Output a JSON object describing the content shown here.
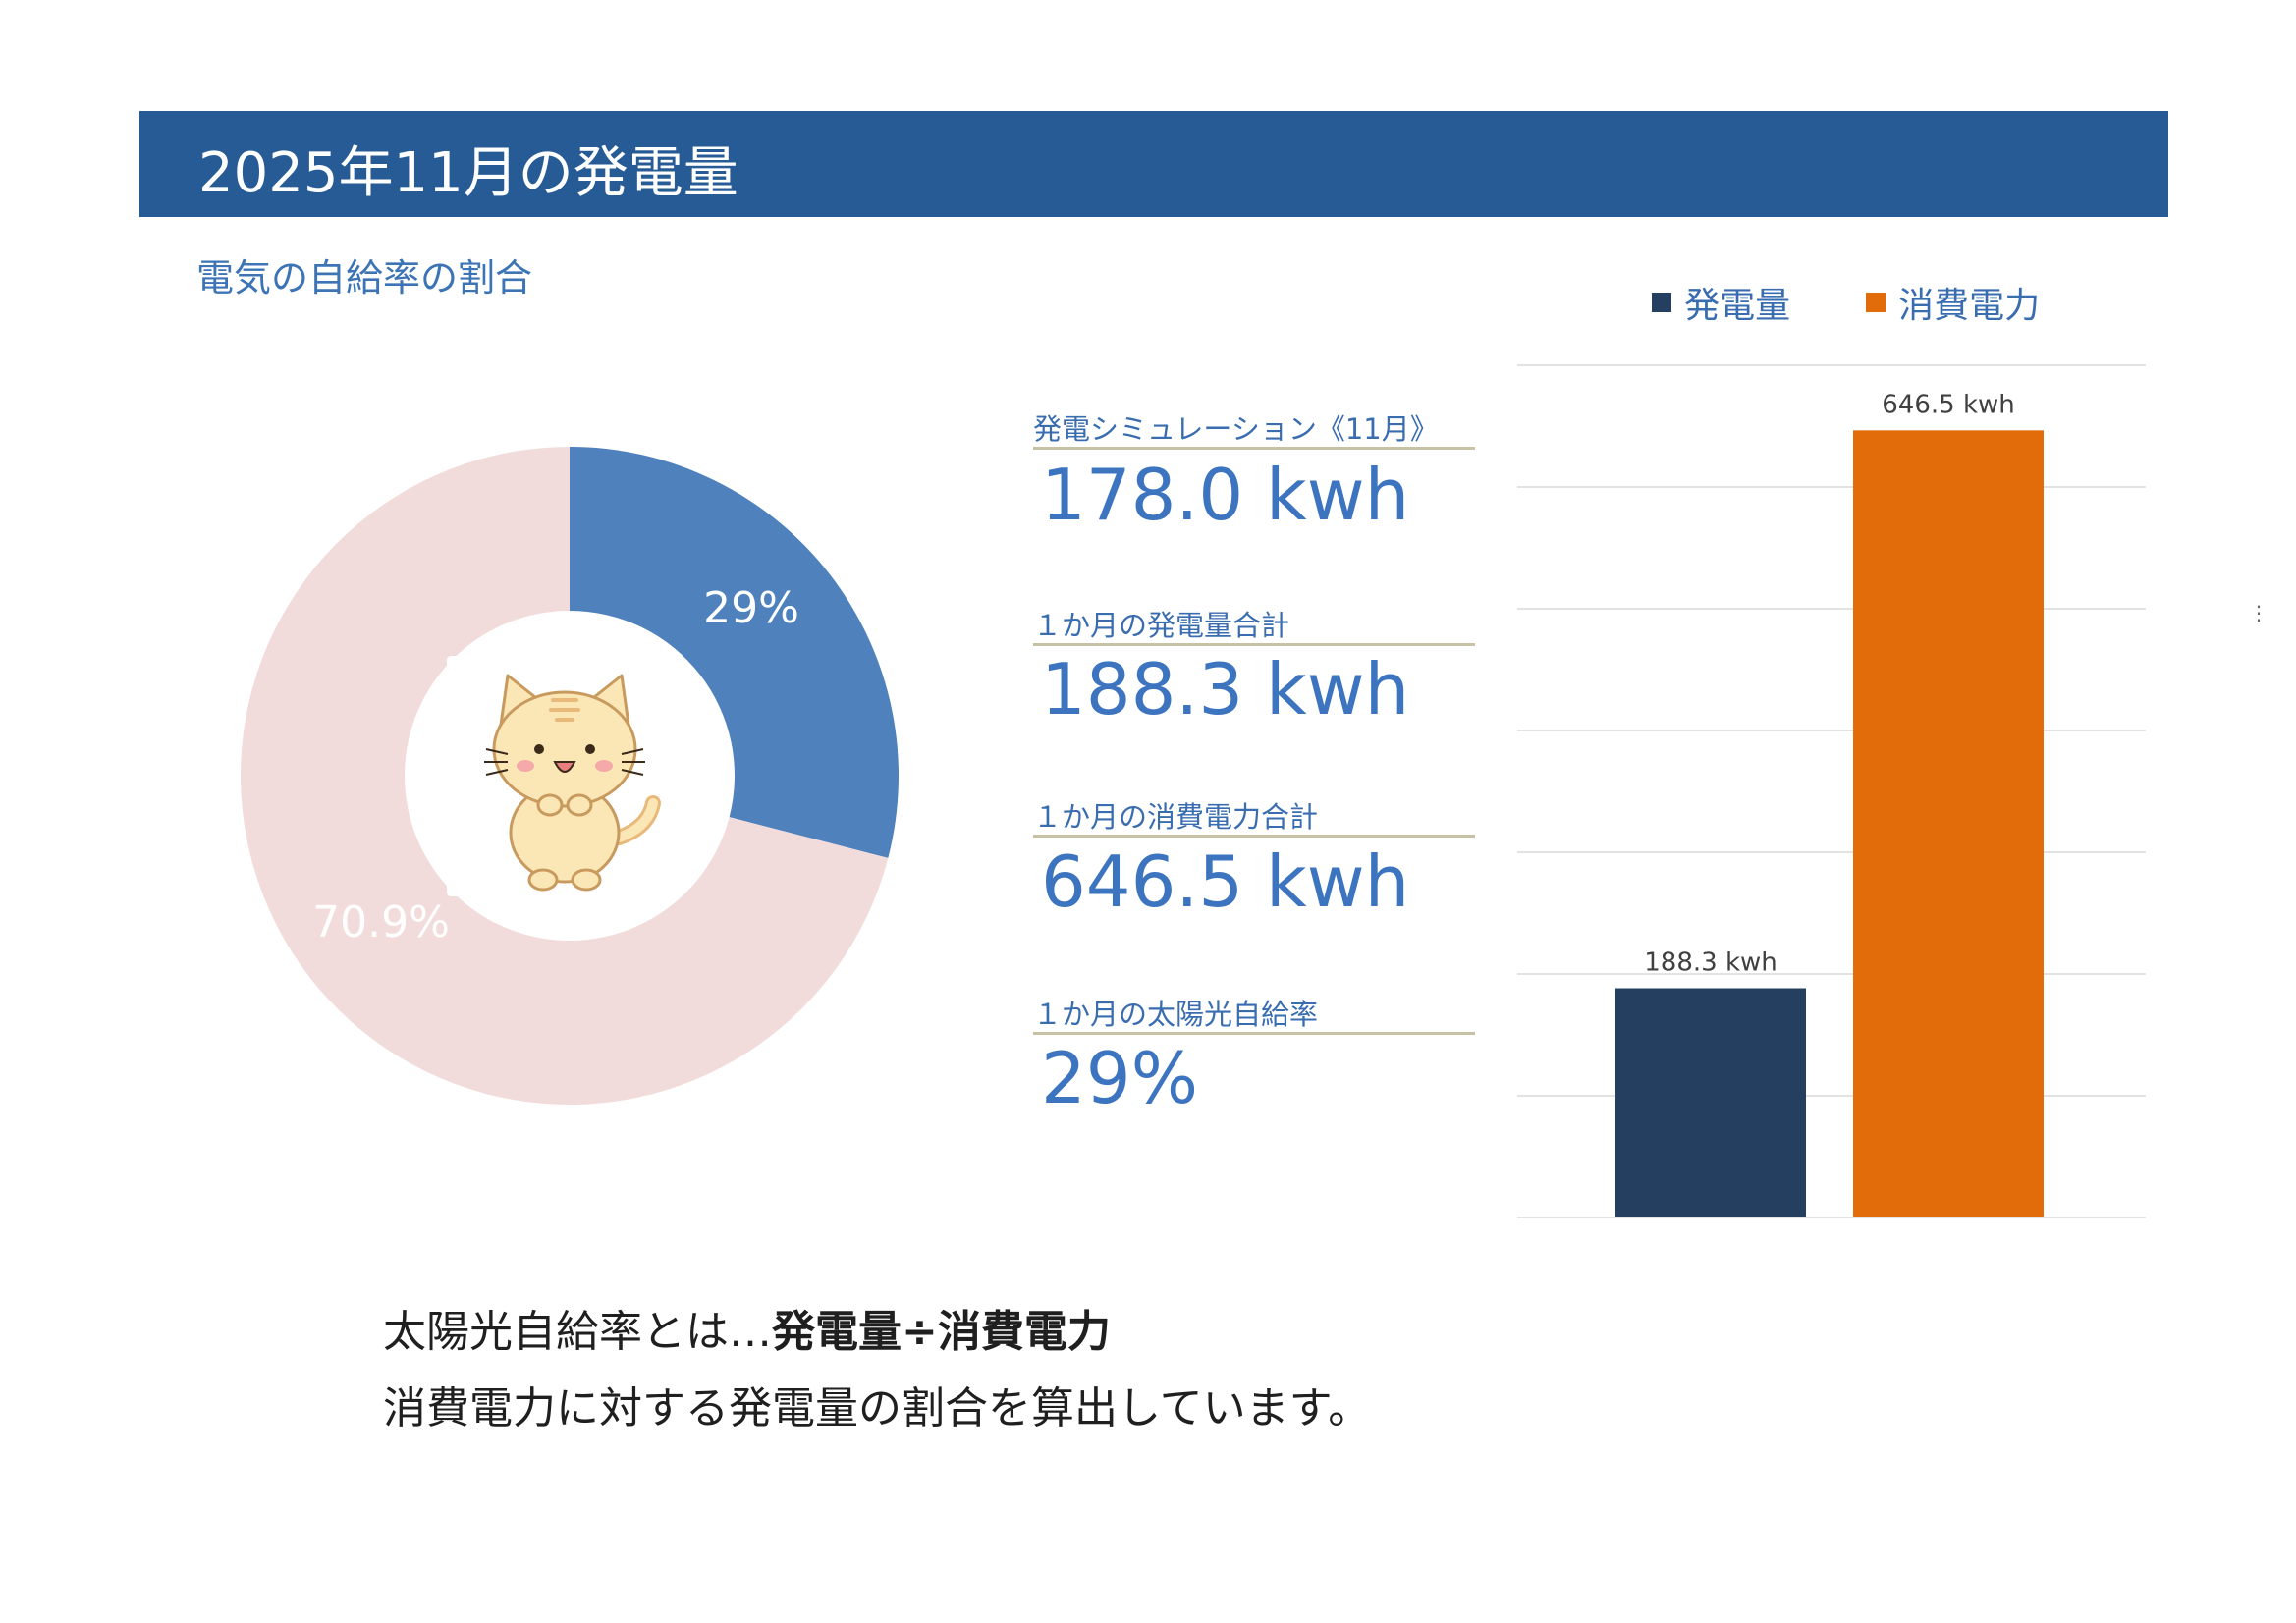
{
  "header": {
    "title": "2025年11月の発電量"
  },
  "subtitle": "電気の自給率の割合",
  "donut": {
    "slices": [
      {
        "label": "29%",
        "value": 29,
        "color": "#4f81bd"
      },
      {
        "label": "70.9%",
        "value": 70.9,
        "color": "#f2dcdb"
      }
    ],
    "center_image": "cat-illustration"
  },
  "metrics": [
    {
      "label": "発電シミュレーション《11月》",
      "value": "178.0 kwh"
    },
    {
      "label": "１か月の発電量合計",
      "value": "188.3 kwh"
    },
    {
      "label": "１か月の消費電力合計",
      "value": "646.5 kwh"
    },
    {
      "label": "１か月の太陽光自給率",
      "value": "29%"
    }
  ],
  "chart_data": {
    "type": "bar",
    "categories": [
      "発電量",
      "消費電力"
    ],
    "values": [
      188.3,
      646.5
    ],
    "data_labels": [
      "188.3 kwh",
      "646.5 kwh"
    ],
    "colors": [
      "#243f60",
      "#e36c0a"
    ],
    "legend": [
      {
        "name": "発電量",
        "color": "#243f60"
      },
      {
        "name": "消費電力",
        "color": "#e36c0a"
      }
    ],
    "legend_position": "top",
    "ylim": [
      0,
      700
    ],
    "grid": true
  },
  "note": {
    "line1_prefix": "太陽光自給率とは…",
    "line1_bold": "発電量÷消費電力",
    "line2": "消費電力に対する発電量の割合を算出しています。"
  }
}
